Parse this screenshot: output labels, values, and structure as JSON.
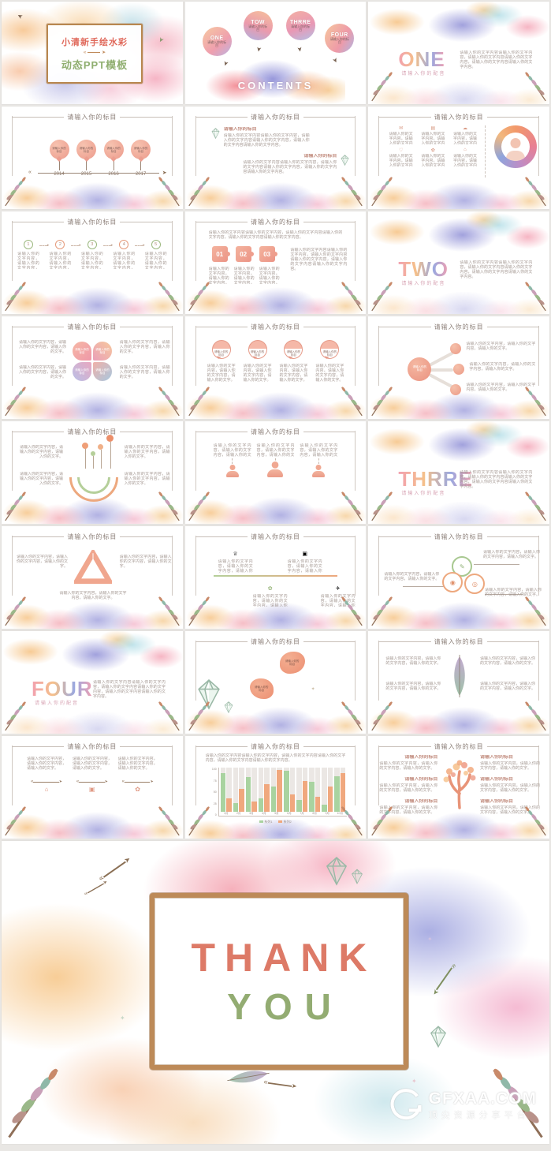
{
  "common": {
    "slide_title": "请输入你的标目",
    "item_title": "请输入你的标目",
    "body": "请输入你的文字内容请输入你的文字内容，请输入你的文字内容请输入你的文字内容，请输入你的文字内容请输入你的文字内容。",
    "body_short": "请输入你的文字内容，请输入你的文字内容，请输入你的文字。"
  },
  "cover": {
    "title": "小清新手绘水彩",
    "subtitle": "动态PPT模板"
  },
  "contents": {
    "heading": "CONTENTS",
    "item_sub": "请输入你的标目",
    "items": [
      "ONE",
      "TOW",
      "THRRE",
      "FOUR"
    ]
  },
  "sections": {
    "one": {
      "word": "ONE",
      "sub": "请输入你的配音"
    },
    "two": {
      "word": "TWO",
      "sub": "请输入你的配音"
    },
    "three": {
      "word": "THRRE",
      "sub": "请输入你的配音"
    },
    "four": {
      "word": "FOUR",
      "sub": "请输入你的配音"
    }
  },
  "timeline": {
    "years": [
      "2014",
      "2015",
      "2016",
      "2017"
    ]
  },
  "steps": {
    "numbers": [
      "1",
      "2",
      "3",
      "4",
      "5"
    ]
  },
  "puzzle": {
    "numbers": [
      "01",
      "02",
      "03"
    ]
  },
  "thankyou": {
    "line1": "THANK",
    "line2": "YOU"
  },
  "watermark": {
    "brand": "GFXAA.COM",
    "tagline": "顶尖资源分享平台"
  },
  "icons": {
    "arrow_head": "➤",
    "arrow_left": "«",
    "triangle": "▸",
    "mail": "✉",
    "grid": "▤",
    "cloud": "☁",
    "heart": "♡",
    "flower": "✿",
    "home": "⌂",
    "crown": "♕",
    "plane": "✈",
    "pen": "✎",
    "target": "◉",
    "search": "◎",
    "box": "▣",
    "sparkle": "✦"
  },
  "chart_data": {
    "type": "bar",
    "title": "",
    "xlabel": "",
    "ylabel": "",
    "categories": [
      "1月",
      "2月",
      "3月",
      "4月",
      "5月",
      "6月",
      "7月",
      "8月",
      "9月",
      "10月"
    ],
    "series": [
      {
        "name": "系列1",
        "color": "#a9d3a0",
        "values": [
          88,
          20,
          78,
          30,
          58,
          92,
          26,
          68,
          16,
          80
        ]
      },
      {
        "name": "系列2",
        "color": "#f0a87e",
        "values": [
          30,
          52,
          24,
          62,
          95,
          40,
          70,
          34,
          58,
          88
        ]
      }
    ],
    "ylim": [
      0,
      100
    ],
    "yticks": [
      "100",
      "75",
      "50",
      "25",
      "0"
    ],
    "grid": false,
    "legend_position": "bottom",
    "background_bar_color": "#ebe7e4"
  }
}
